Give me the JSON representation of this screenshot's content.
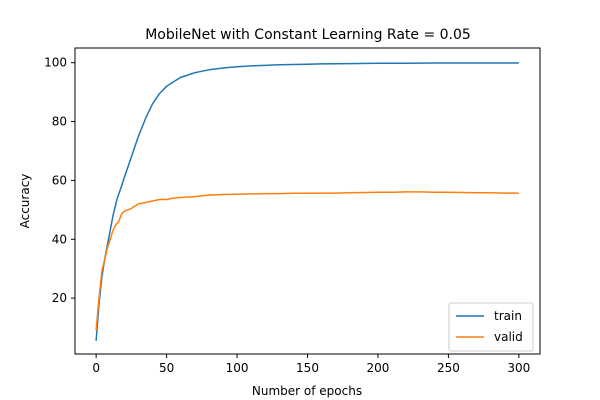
{
  "chart_data": {
    "type": "line",
    "title": "MobileNet with Constant Learning Rate = 0.05",
    "xlabel": "Number of epochs",
    "ylabel": "Accuracy",
    "xlim": [
      -15,
      315
    ],
    "ylim": [
      1,
      105
    ],
    "xticks": [
      0,
      50,
      100,
      150,
      200,
      250,
      300
    ],
    "yticks": [
      20,
      40,
      60,
      80,
      100
    ],
    "grid": false,
    "legend_position": "lower-right",
    "series": [
      {
        "name": "train",
        "color": "#1f77b4",
        "x": [
          0,
          2,
          4,
          6,
          8,
          10,
          12,
          15,
          18,
          20,
          25,
          30,
          35,
          40,
          45,
          50,
          55,
          60,
          65,
          70,
          80,
          90,
          100,
          110,
          120,
          130,
          140,
          150,
          160,
          180,
          200,
          220,
          240,
          260,
          280,
          300
        ],
        "y": [
          5.5,
          18,
          27,
          33,
          38,
          43,
          48,
          54,
          58,
          61,
          68,
          75,
          81,
          86,
          89.5,
          92,
          93.5,
          95,
          95.8,
          96.6,
          97.6,
          98.2,
          98.6,
          98.9,
          99.1,
          99.3,
          99.4,
          99.5,
          99.6,
          99.7,
          99.8,
          99.85,
          99.9,
          99.9,
          99.9,
          99.9
        ]
      },
      {
        "name": "valid",
        "color": "#ff7f0e",
        "x": [
          0,
          2,
          4,
          6,
          8,
          10,
          12,
          14,
          16,
          18,
          20,
          25,
          30,
          35,
          40,
          45,
          50,
          55,
          60,
          70,
          80,
          90,
          100,
          110,
          120,
          130,
          140,
          150,
          160,
          170,
          180,
          190,
          200,
          210,
          220,
          230,
          240,
          250,
          260,
          270,
          280,
          290,
          300
        ],
        "y": [
          9,
          20,
          29,
          33,
          37,
          40,
          43,
          45,
          46,
          48.5,
          49.5,
          50.5,
          52,
          52.5,
          53,
          53.5,
          53.5,
          54,
          54.2,
          54.5,
          55,
          55.2,
          55.3,
          55.4,
          55.5,
          55.5,
          55.6,
          55.6,
          55.7,
          55.7,
          55.8,
          55.9,
          56,
          56,
          56.1,
          56.1,
          56,
          56,
          55.9,
          55.8,
          55.8,
          55.7,
          55.7
        ]
      }
    ]
  }
}
